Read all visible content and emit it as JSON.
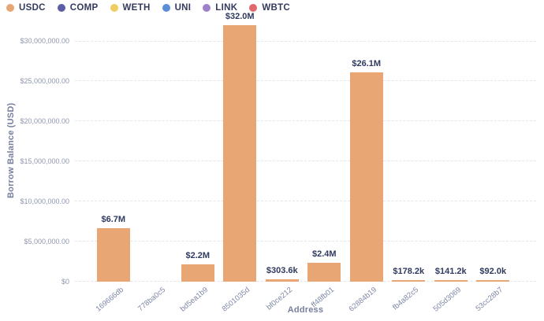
{
  "legend": {
    "items": [
      {
        "label": "USDC",
        "color": "#E7A674"
      },
      {
        "label": "COMP",
        "color": "#5B5EA6"
      },
      {
        "label": "WETH",
        "color": "#F0CC62"
      },
      {
        "label": "UNI",
        "color": "#5A8FD8"
      },
      {
        "label": "LINK",
        "color": "#9F81CA"
      },
      {
        "label": "WBTC",
        "color": "#E0696E"
      }
    ]
  },
  "chart_data": {
    "type": "bar",
    "title": "",
    "xlabel": "Address",
    "ylabel": "Borrow Balance (USD)",
    "categories": [
      "169666db",
      "778ba0c5",
      "bd5ea1b9",
      "8501035d",
      "bf0ce212",
      "ff48fb01",
      "62884b19",
      "fb4a82c5",
      "505d3069",
      "53cc28b7"
    ],
    "series": [
      {
        "name": "USDC",
        "color": "#E7A674",
        "values": [
          6700000,
          0,
          2200000,
          32000000,
          303600,
          2400000,
          26100000,
          178200,
          141200,
          92000
        ],
        "bar_labels": [
          "$6.7M",
          "",
          "$2.2M",
          "$32.0M",
          "$303.6k",
          "$2.4M",
          "$26.1M",
          "$178.2k",
          "$141.2k",
          "$92.0k"
        ]
      }
    ],
    "ylim": [
      0,
      33000000
    ],
    "yticks": [
      {
        "value": 0,
        "label": "$0"
      },
      {
        "value": 5000000,
        "label": "$5,000,000.00"
      },
      {
        "value": 10000000,
        "label": "$10,000,000.00"
      },
      {
        "value": 15000000,
        "label": "$15,000,000.00"
      },
      {
        "value": 20000000,
        "label": "$20,000,000.00"
      },
      {
        "value": 25000000,
        "label": "$25,000,000.00"
      },
      {
        "value": 30000000,
        "label": "$30,000,000.00"
      }
    ],
    "grid": "horizontal-dashed",
    "legend_position": "top-left",
    "colors": {
      "background": "#FFFFFF",
      "grid": "#E4E6EC",
      "y_tick_label": "#8F97AE",
      "x_tick_label": "#7E88A6",
      "axis_title": "#76809E",
      "data_label": "#2F3A5F",
      "legend_label": "#333A5E"
    }
  }
}
